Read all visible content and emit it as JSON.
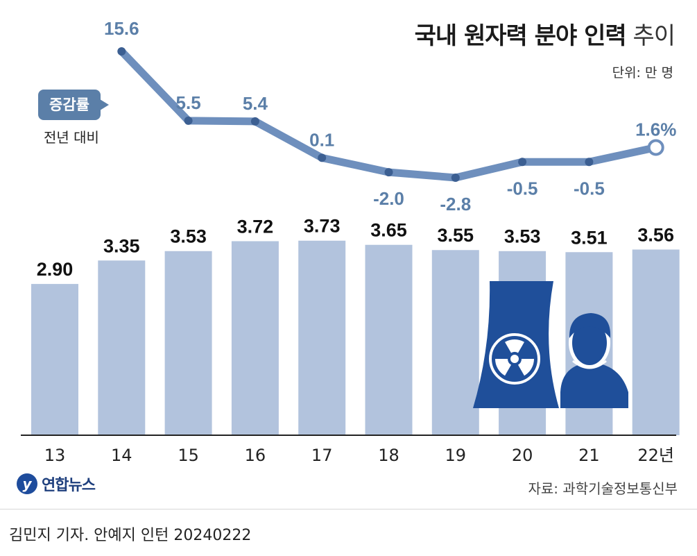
{
  "header": {
    "title_bold": "국내 원자력 분야 인력",
    "title_light": "추이",
    "unit": "단위: 만 명"
  },
  "legend": {
    "badge": "증감률",
    "subtitle": "전년 대비"
  },
  "footer": {
    "logo_text": "연합뉴스",
    "source": "자료: 과학기술정보통신부",
    "credit": "김민지 기자. 안예지 인턴  20240222"
  },
  "colors": {
    "bar": "#b2c3dd",
    "line": "#6e8fbd",
    "point": "#3c5f92",
    "rate_label": "#5b7fa8",
    "icon": "#1f4f9a"
  },
  "icons": [
    "nuclear-plant-icon",
    "worker-person-icon"
  ],
  "chart_data": [
    {
      "type": "bar",
      "categories": [
        "13",
        "14",
        "15",
        "16",
        "17",
        "18",
        "19",
        "20",
        "21",
        "22년"
      ],
      "values": [
        2.9,
        3.35,
        3.53,
        3.72,
        3.73,
        3.65,
        3.55,
        3.53,
        3.51,
        3.56
      ],
      "value_labels": [
        "2.90",
        "3.35",
        "3.53",
        "3.72",
        "3.73",
        "3.65",
        "3.55",
        "3.53",
        "3.51",
        "3.56"
      ],
      "ylim": [
        0,
        5.3
      ]
    },
    {
      "type": "line",
      "x": [
        "14",
        "15",
        "16",
        "17",
        "18",
        "19",
        "20",
        "21",
        "22년"
      ],
      "values": [
        15.6,
        5.5,
        5.4,
        0.1,
        -2.0,
        -2.8,
        -0.5,
        -0.5,
        1.6
      ],
      "value_labels": [
        "15.6",
        "5.5",
        "5.4",
        "0.1",
        "-2.0",
        "-2.8",
        "-0.5",
        "-0.5",
        "1.6%"
      ],
      "ylim": [
        -2.8,
        15.6
      ]
    }
  ]
}
